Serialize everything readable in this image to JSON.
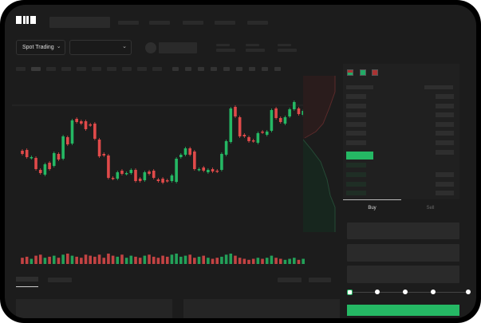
{
  "header": {
    "logo_text": "OKX"
  },
  "controls": {
    "market_selector": "Spot Trading",
    "pair_selector": ""
  },
  "order_form": {
    "tabs": [
      {
        "label": "Buy",
        "active": true
      },
      {
        "label": "Sell",
        "active": false
      }
    ],
    "slider_value_percent": 0,
    "slider_stops": 5
  },
  "colors": {
    "up": "#25b864",
    "down": "#e04a4a",
    "background": "#1c1c1c"
  },
  "icons": {
    "logo": "okx-logo",
    "dropdown": "chevron-down-icon",
    "orderbook_views": [
      "both-sides-icon",
      "bids-only-icon",
      "asks-only-icon"
    ]
  },
  "chart_data": {
    "type": "candlestick",
    "candles": [
      [
        47,
        43
      ],
      [
        48,
        39
      ],
      [
        38,
        39
      ],
      [
        38,
        24
      ],
      [
        23,
        19
      ],
      [
        17,
        30
      ],
      [
        32,
        24
      ],
      [
        28,
        44
      ],
      [
        43,
        36
      ],
      [
        37,
        65
      ],
      [
        64,
        55
      ],
      [
        56,
        85
      ],
      [
        87,
        83
      ],
      [
        84,
        81
      ],
      [
        84,
        74
      ],
      [
        80,
        79
      ],
      [
        81,
        62
      ],
      [
        61,
        40
      ],
      [
        43,
        41
      ],
      [
        41,
        13
      ],
      [
        13,
        12
      ],
      [
        12,
        20
      ],
      [
        22,
        18
      ],
      [
        18,
        19
      ],
      [
        19,
        23
      ],
      [
        23,
        9
      ],
      [
        12,
        9
      ],
      [
        10,
        20
      ],
      [
        21,
        18
      ],
      [
        22,
        13
      ],
      [
        11,
        9
      ],
      [
        12,
        7
      ],
      [
        10,
        9
      ],
      [
        9,
        16
      ],
      [
        8,
        37
      ],
      [
        39,
        42
      ],
      [
        42,
        50
      ],
      [
        50,
        42
      ],
      [
        46,
        24
      ],
      [
        23,
        24
      ],
      [
        26,
        22
      ],
      [
        20,
        23
      ],
      [
        24,
        21
      ],
      [
        22,
        21
      ],
      [
        23,
        43
      ],
      [
        42,
        59
      ],
      [
        58,
        100
      ],
      [
        102,
        90
      ],
      [
        89,
        65
      ],
      [
        67,
        65
      ],
      [
        64,
        59
      ],
      [
        60,
        59
      ],
      [
        57,
        69
      ],
      [
        71,
        70
      ],
      [
        67,
        71
      ],
      [
        72,
        98
      ],
      [
        100,
        88
      ],
      [
        88,
        83
      ],
      [
        81,
        89
      ],
      [
        90,
        99
      ],
      [
        99,
        108
      ],
      [
        100,
        93
      ],
      [
        92,
        97
      ]
    ],
    "volumes": [
      6,
      7,
      5,
      8,
      9,
      6,
      7,
      8,
      6,
      9,
      10,
      8,
      7,
      6,
      9,
      8,
      7,
      9,
      6,
      10,
      8,
      7,
      9,
      6,
      8,
      7,
      6,
      8,
      9,
      7,
      6,
      8,
      7,
      9,
      10,
      7,
      8,
      9,
      6,
      7,
      8,
      6,
      5,
      6,
      7,
      9,
      10,
      8,
      6,
      5,
      4,
      5,
      6,
      5,
      6,
      8,
      6,
      5,
      4,
      5,
      6,
      4,
      5
    ]
  }
}
